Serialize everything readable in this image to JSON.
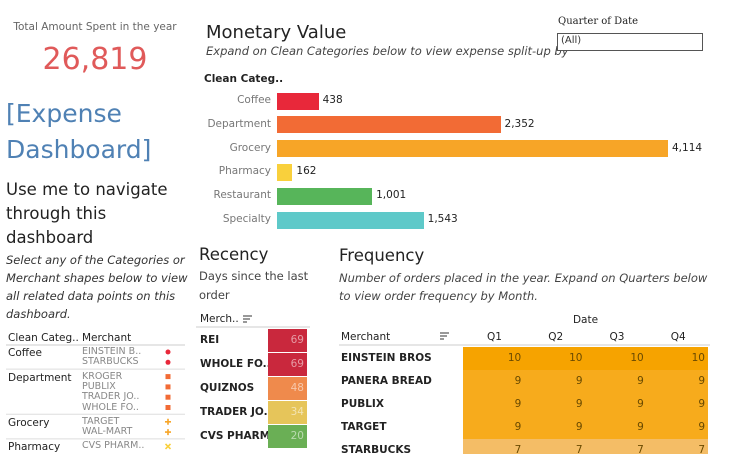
{
  "kpi": {
    "label": "Total Amount Spent in the year",
    "value": {
      "value": 26819,
      "label": "26,819"
    }
  },
  "dashboard_title": "[Expense Dashboard]",
  "nav": {
    "heading": "Use me to navigate through this dashboard",
    "text": "Select any of the Categories or Merchant shapes below to view all related data points on this dashboard."
  },
  "filter": {
    "label": "Quarter of Date",
    "value": "(All)"
  },
  "shape_table": {
    "headers": [
      "Clean Categ..",
      "Merchant"
    ],
    "groups": [
      {
        "category": "Coffee",
        "shape": "circle",
        "color": "#e8283a",
        "merchants": [
          "EINSTEIN B..",
          "STARBUCKS"
        ]
      },
      {
        "category": "Department",
        "shape": "square",
        "color": "#f26b35",
        "merchants": [
          "KROGER",
          "PUBLIX",
          "TRADER JO..",
          "WHOLE FO.."
        ]
      },
      {
        "category": "Grocery",
        "shape": "plus",
        "color": "#f7a527",
        "merchants": [
          "TARGET",
          "WAL-MART"
        ]
      },
      {
        "category": "Pharmacy",
        "shape": "cross",
        "color": "#f9d03c",
        "merchants": [
          "CVS PHARM.."
        ]
      }
    ]
  },
  "chart_data": [
    {
      "type": "hbar",
      "title": "Monetary Value",
      "subtitle": "Expand on Clean Categories below to view expense split-up by",
      "category_header": "Clean Categ..",
      "categories": [
        "Coffee",
        "Department",
        "Grocery",
        "Pharmacy",
        "Restaurant",
        "Specialty"
      ],
      "values": [
        438,
        2352,
        4114,
        162,
        1001,
        1543
      ],
      "value_labels": [
        "438",
        "2,352",
        "4,114",
        "162",
        "1,001",
        "1,543"
      ],
      "colors": [
        "#e8283a",
        "#f26b35",
        "#f7a527",
        "#f9d03c",
        "#57b55a",
        "#5ec9c9"
      ]
    },
    {
      "type": "cells",
      "title": "Recency",
      "subtitle": "Days since the last order",
      "category_header": "Merch..",
      "categories": [
        "REI",
        "WHOLE FO..",
        "QUIZNOS",
        "TRADER JO..",
        "CVS PHARM.."
      ],
      "values": [
        69,
        69,
        48,
        34,
        20
      ],
      "colors": [
        "#c9283d",
        "#c9283d",
        "#ef8a4c",
        "#e6c55a",
        "#6aaf55"
      ]
    },
    {
      "type": "heatmap",
      "title": "Frequency",
      "subtitle": "Number of orders placed in the year. Expand on Quarters below to view order frequency by Month.",
      "column_group": "Date",
      "row_header": "Merchant",
      "columns": [
        "Q1",
        "Q2",
        "Q3",
        "Q4"
      ],
      "rows": [
        "EINSTEIN BROS",
        "PANERA BREAD",
        "PUBLIX",
        "TARGET",
        "STARBUCKS"
      ],
      "values": [
        [
          10,
          10,
          10,
          10
        ],
        [
          9,
          9,
          9,
          9
        ],
        [
          9,
          9,
          9,
          9
        ],
        [
          9,
          9,
          9,
          9
        ],
        [
          7,
          7,
          7,
          7
        ]
      ],
      "row_colors": [
        "#f6a300",
        "#f7ab1c",
        "#f7ab1c",
        "#f7ab1c",
        "#f4bd66"
      ]
    }
  ]
}
